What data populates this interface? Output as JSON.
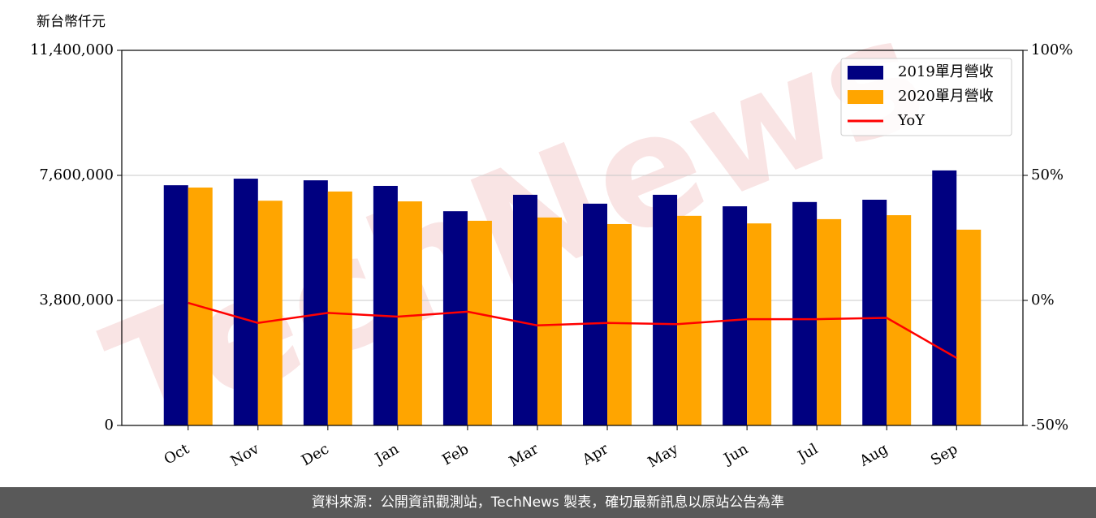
{
  "chart_data": {
    "type": "bar",
    "y_label": "新台幣仟元",
    "watermark": "TechNews",
    "categories": [
      "Oct",
      "Nov",
      "Dec",
      "Jan",
      "Feb",
      "Mar",
      "Apr",
      "May",
      "Jun",
      "Jul",
      "Aug",
      "Sep"
    ],
    "series": [
      {
        "name": "2019單月營收",
        "type": "bar",
        "color": "#000080",
        "values": [
          7300000,
          7500000,
          7450000,
          7280000,
          6510000,
          7010000,
          6740000,
          7010000,
          6660000,
          6790000,
          6860000,
          7750000
        ]
      },
      {
        "name": "2020單月營收",
        "type": "bar",
        "color": "#ffa500",
        "values": [
          7230000,
          6830000,
          7110000,
          6810000,
          6220000,
          6320000,
          6120000,
          6370000,
          6140000,
          6270000,
          6390000,
          5950000
        ]
      },
      {
        "name": "YoY",
        "type": "line",
        "axis": "y2",
        "color": "#ff0000",
        "values": [
          -1,
          -9,
          -5,
          -6.5,
          -4.5,
          -10,
          -9,
          -9.5,
          -7.5,
          -7.5,
          -7,
          -23
        ]
      }
    ],
    "ylim": [
      0,
      11400000
    ],
    "yticks": [
      0,
      {
        "value": 3800000,
        "label": "3,800,000"
      },
      {
        "value": 7600000,
        "label": "7,600,000"
      },
      {
        "value": 11400000,
        "label": "11,400,000"
      }
    ],
    "y2lim": [
      -50,
      100
    ],
    "y2ticks": [
      {
        "value": -50,
        "label": "-50%"
      },
      {
        "value": 0,
        "label": "0%"
      },
      {
        "value": 50,
        "label": "50%"
      },
      {
        "value": 100,
        "label": "100%"
      }
    ],
    "grid": true,
    "legend": "upper right",
    "footer": "資料來源：公開資訊觀測站，TechNews 製表，確切最新訊息以原站公告為準"
  }
}
